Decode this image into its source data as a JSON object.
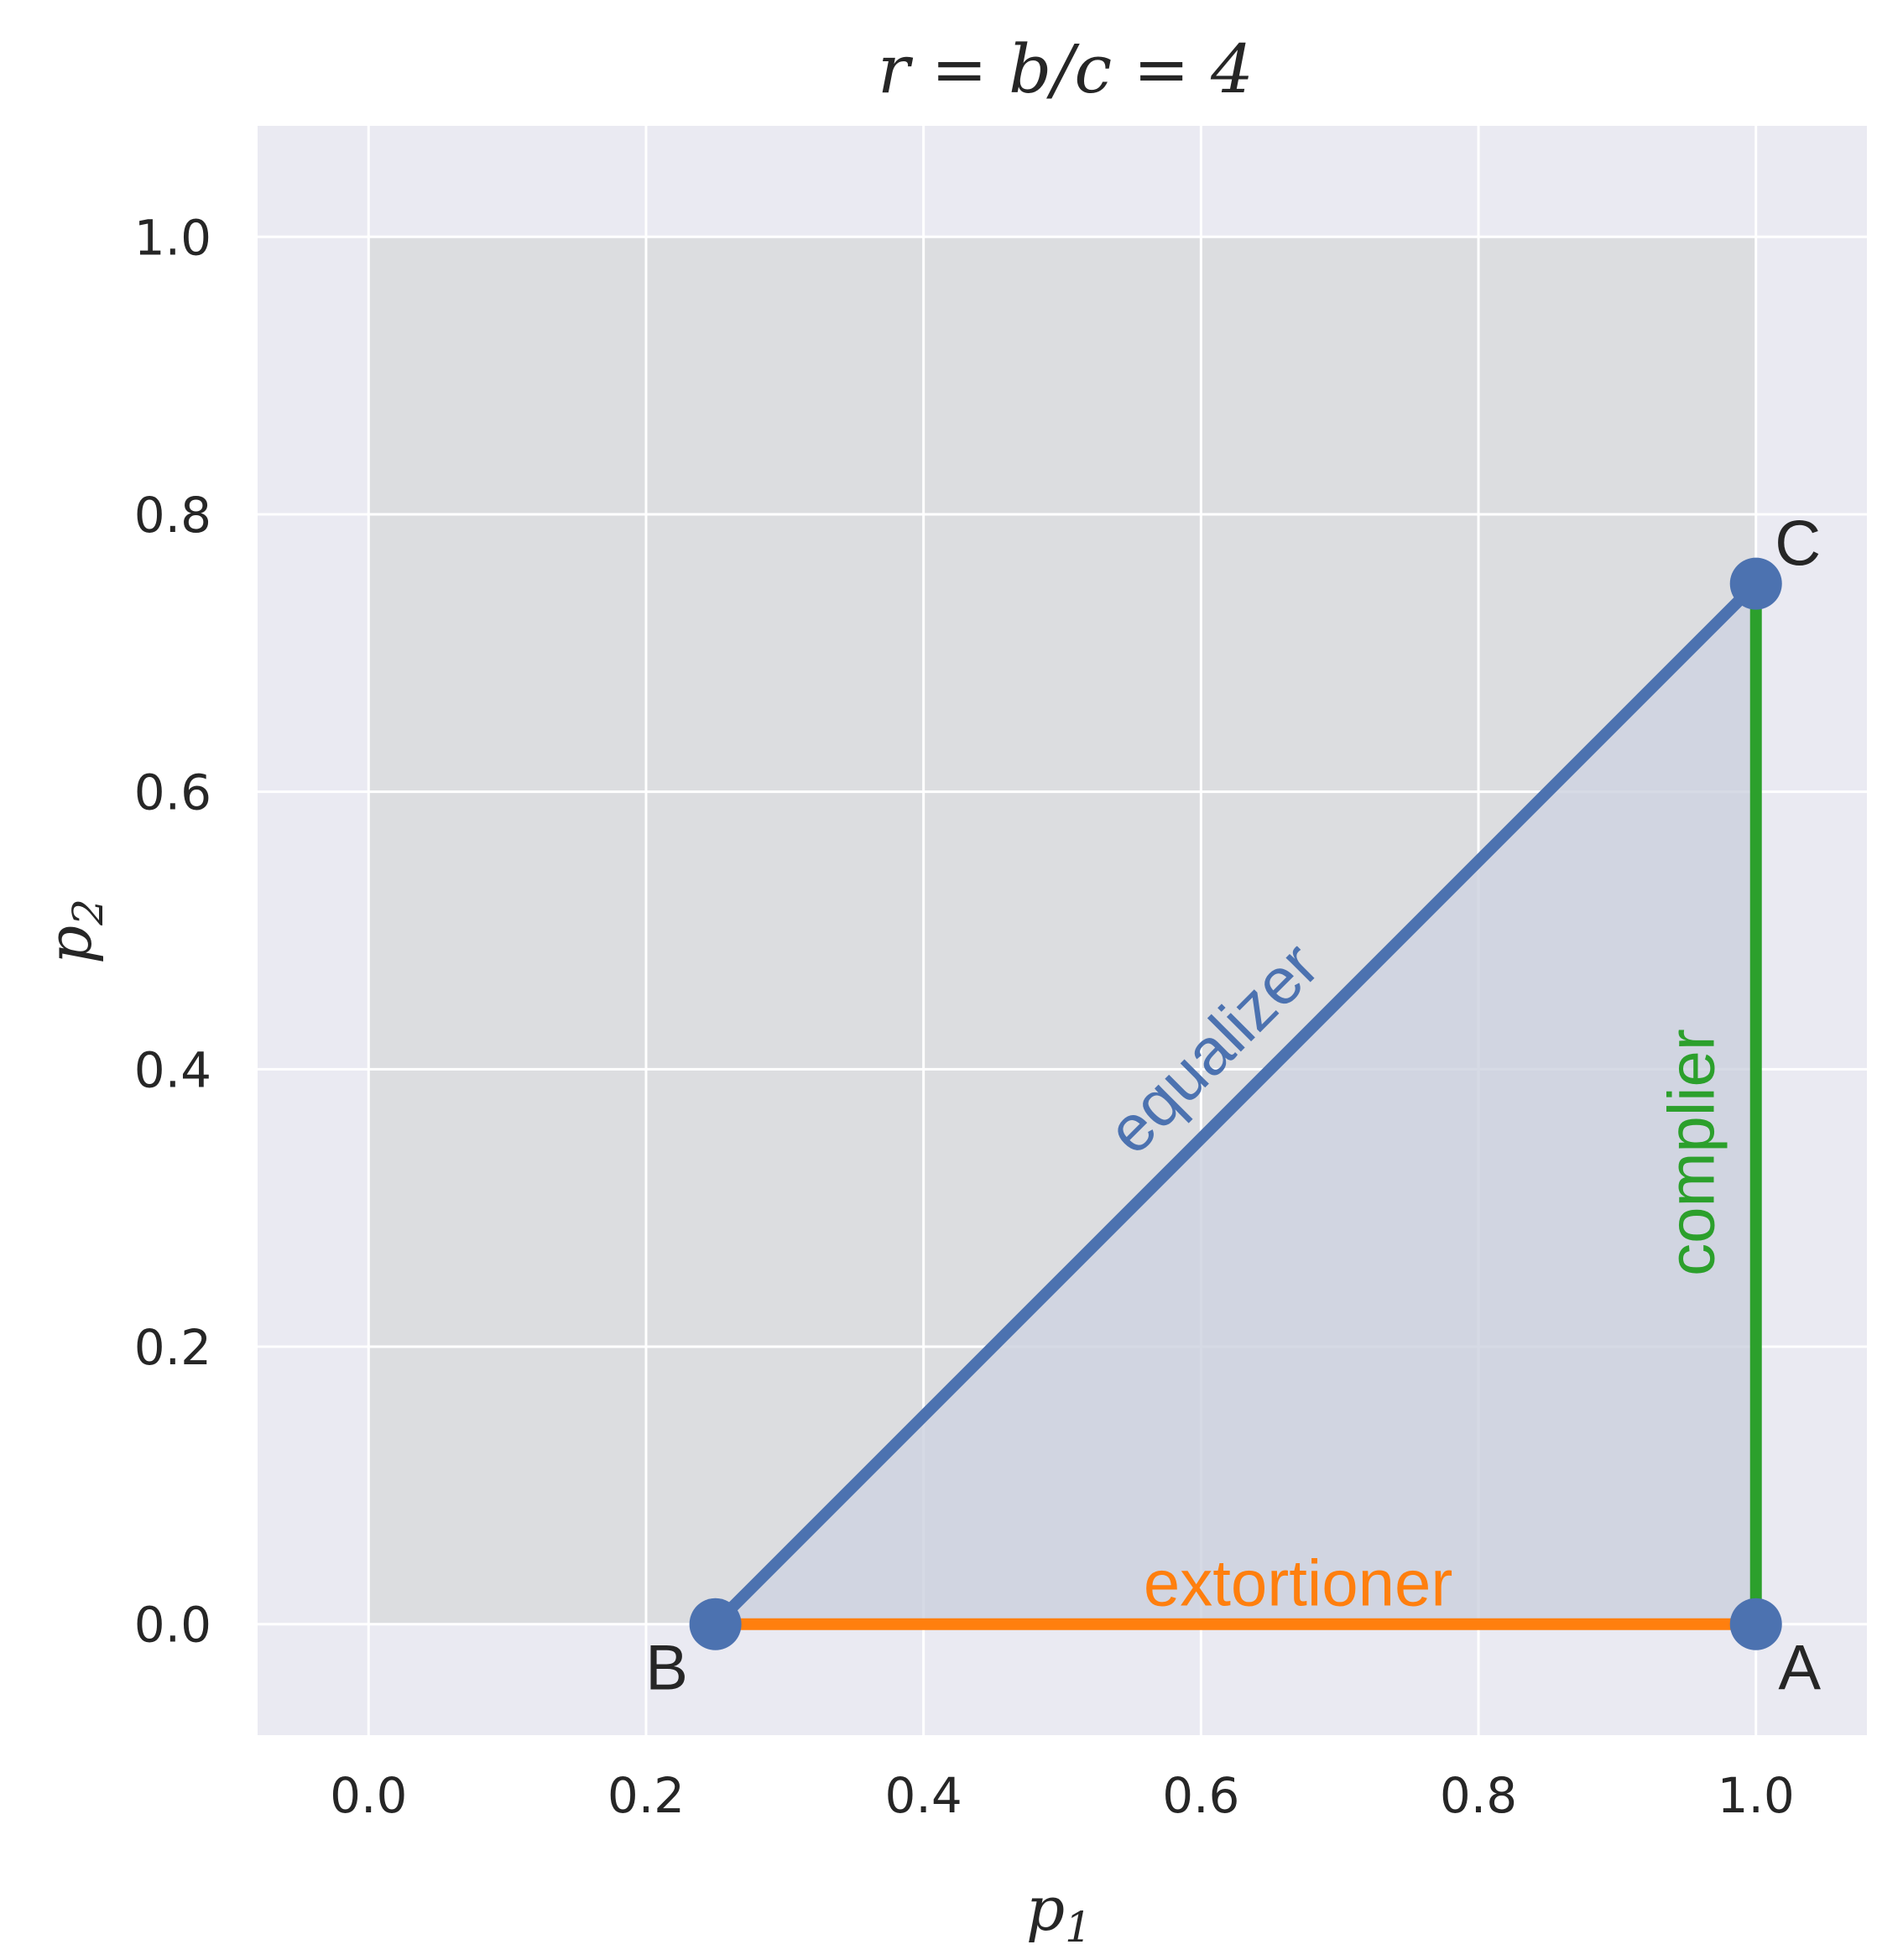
{
  "chart_data": {
    "type": "line",
    "title": "r = b/c = 4",
    "xlabel": "p",
    "xlabel_sub": "1",
    "ylabel": "p",
    "ylabel_sub": "2",
    "xlim": [
      -0.08,
      1.08
    ],
    "ylim": [
      -0.08,
      1.08
    ],
    "xticks": [
      "0.0",
      "0.2",
      "0.4",
      "0.6",
      "0.8",
      "1.0"
    ],
    "yticks": [
      "0.0",
      "0.2",
      "0.4",
      "0.6",
      "0.8",
      "1.0"
    ],
    "grid": true,
    "background": "#eaeaf2",
    "unit_square_shade": {
      "x": [
        0,
        1
      ],
      "y": [
        0,
        1
      ],
      "color": "#dcdde0"
    },
    "feasible_region": {
      "points": [
        [
          0.25,
          0
        ],
        [
          1.0,
          0
        ],
        [
          1.0,
          0.75
        ]
      ],
      "color": "#cfd4e0"
    },
    "vertices": [
      {
        "label": "A",
        "x": 1.0,
        "y": 0.0
      },
      {
        "label": "B",
        "x": 0.25,
        "y": 0.0
      },
      {
        "label": "C",
        "x": 1.0,
        "y": 0.75
      }
    ],
    "series": [
      {
        "name": "equalizer",
        "color": "#4c72b0",
        "x": [
          0.25,
          1.0
        ],
        "y": [
          0.0,
          0.75
        ]
      },
      {
        "name": "extortioner",
        "color": "#ff7f0e",
        "x": [
          0.25,
          1.0
        ],
        "y": [
          0.0,
          0.0
        ]
      },
      {
        "name": "complier",
        "color": "#2ca02c",
        "x": [
          1.0,
          1.0
        ],
        "y": [
          0.0,
          0.75
        ]
      }
    ],
    "point_color": "#4c72b0"
  }
}
